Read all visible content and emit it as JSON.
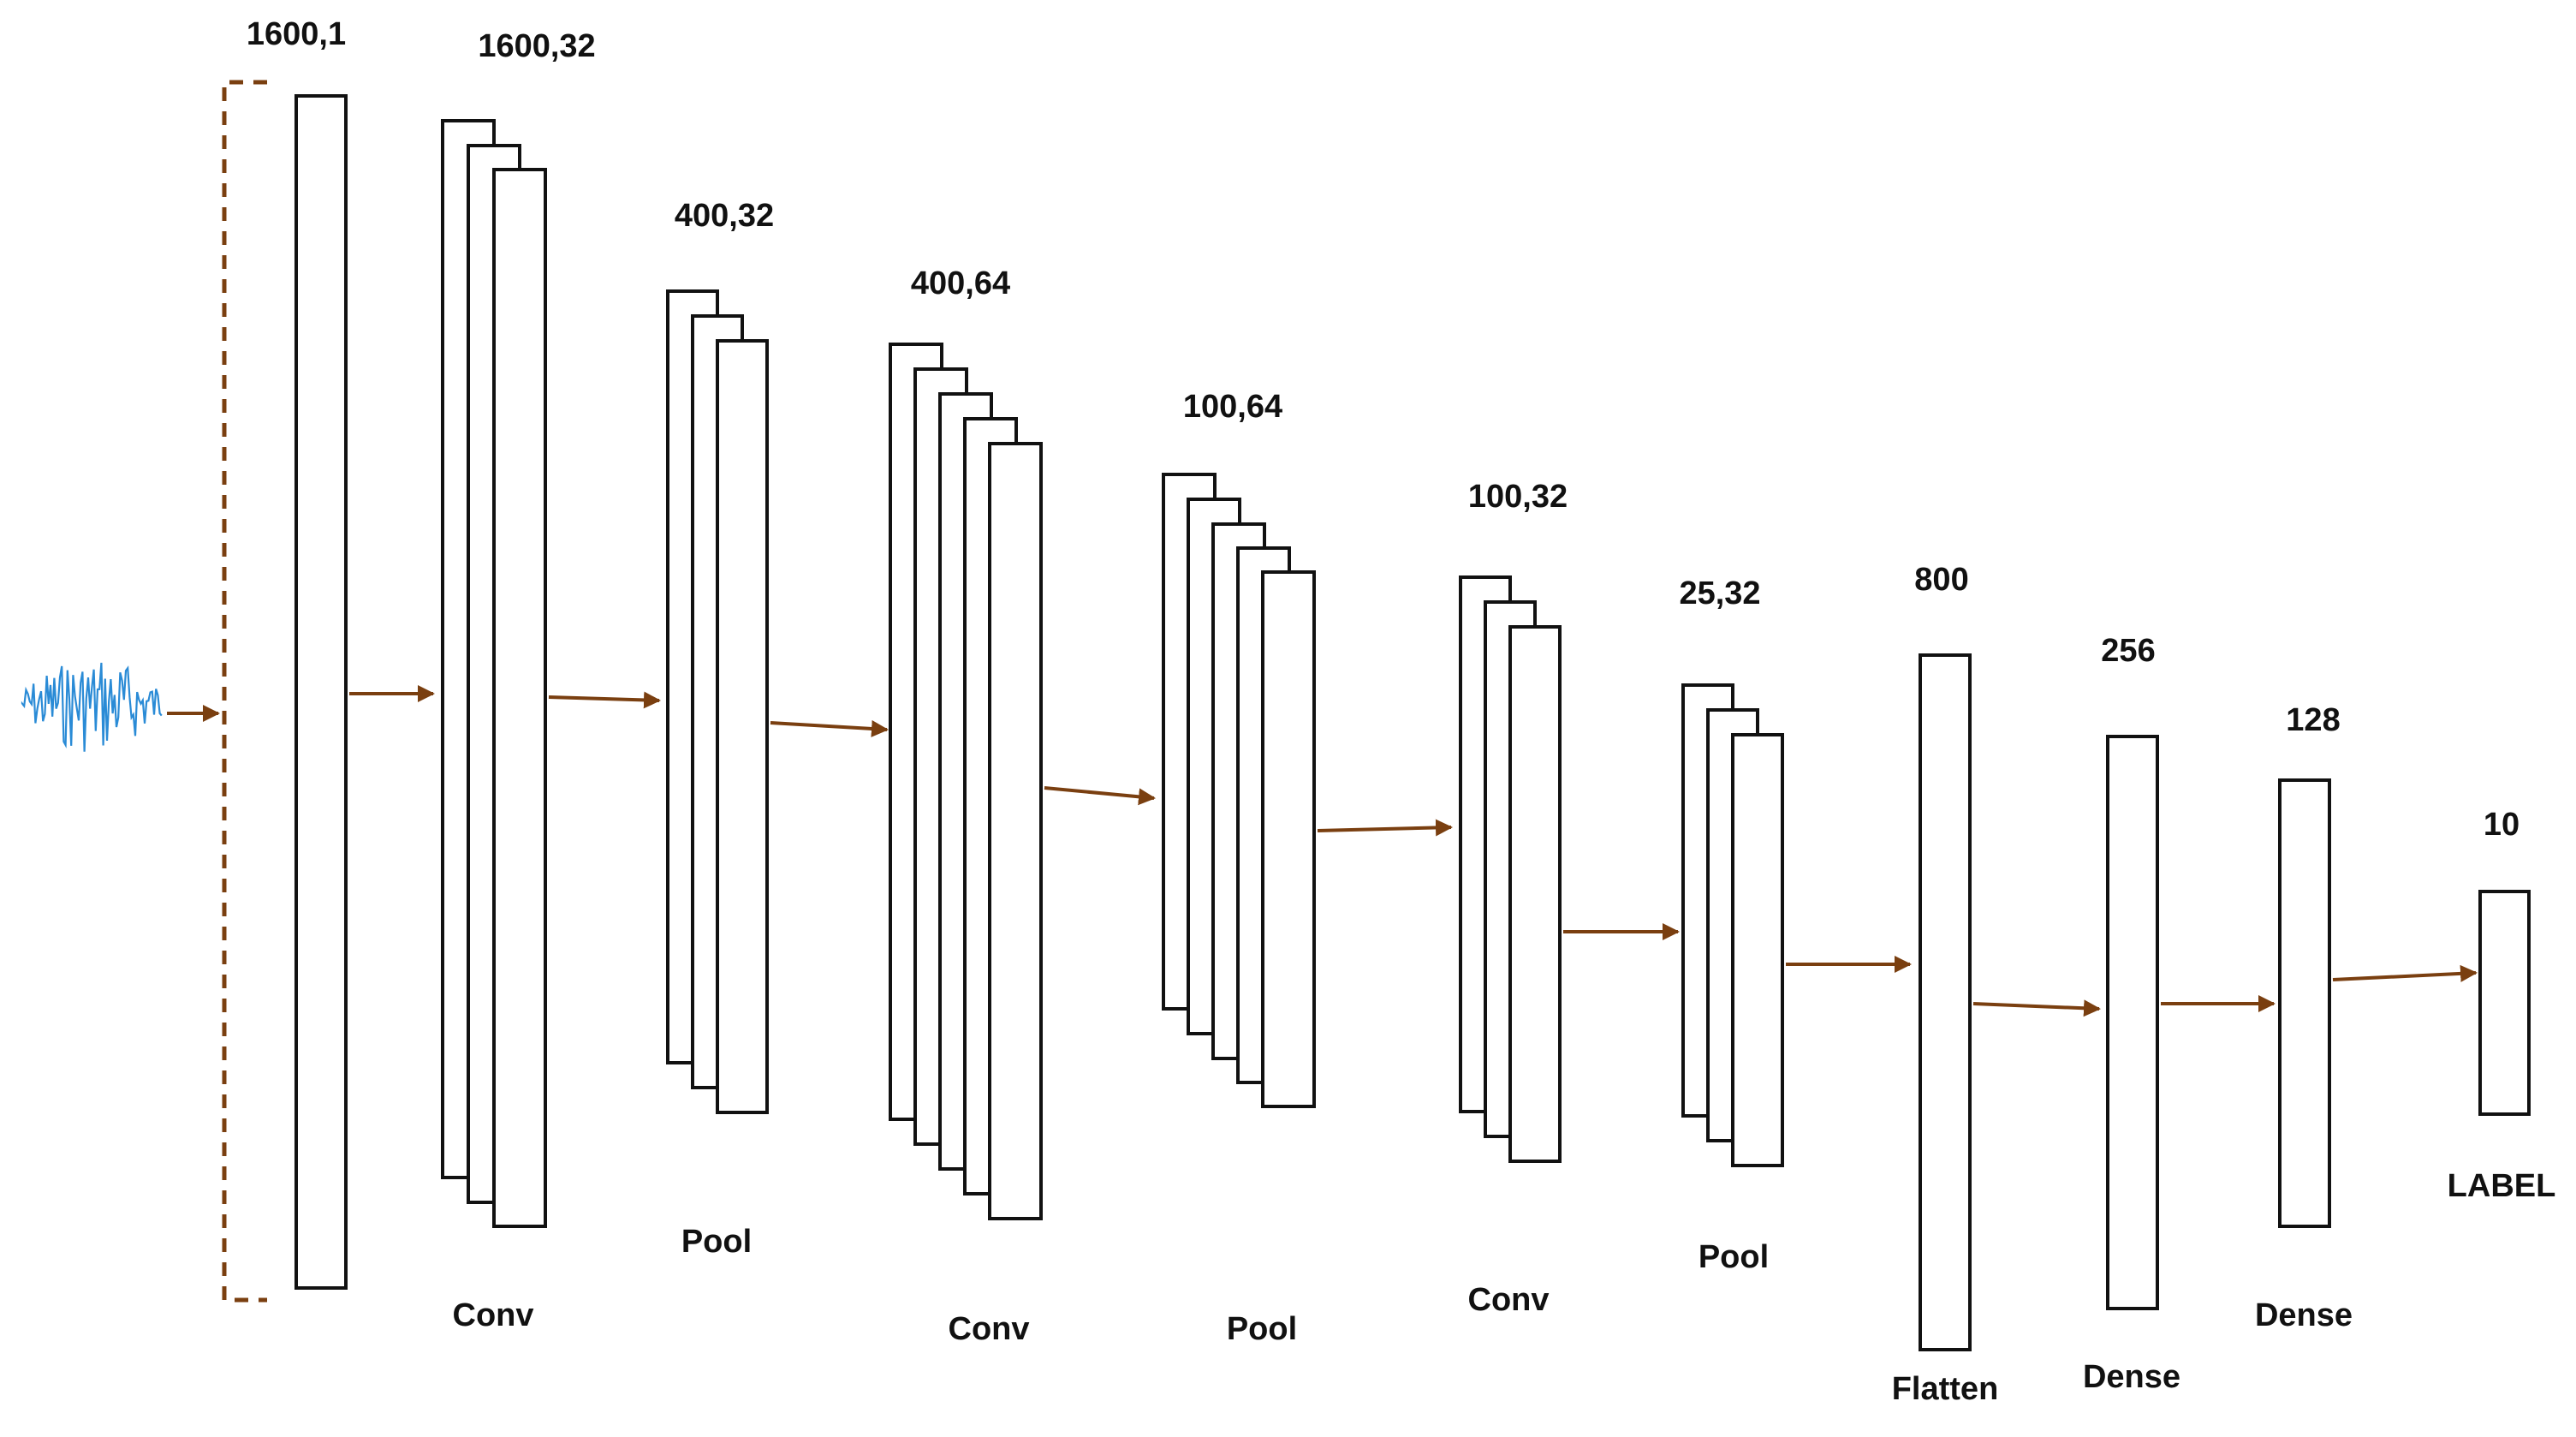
{
  "diagram": {
    "colors": {
      "arrow": "#7a3f10",
      "signal": "#2a8bd6",
      "box_stroke": "#111111"
    },
    "layers": [
      {
        "shape_label": "1600,1",
        "type_label": ""
      },
      {
        "shape_label": "1600,32",
        "type_label": "Conv"
      },
      {
        "shape_label": "400,32",
        "type_label": "Pool"
      },
      {
        "shape_label": "400,64",
        "type_label": "Conv"
      },
      {
        "shape_label": "100,64",
        "type_label": "Pool"
      },
      {
        "shape_label": "100,32",
        "type_label": "Conv"
      },
      {
        "shape_label": "25,32",
        "type_label": "Pool"
      },
      {
        "shape_label": "800",
        "type_label": "Flatten"
      },
      {
        "shape_label": "256",
        "type_label": "Dense"
      },
      {
        "shape_label": "128",
        "type_label": "Dense"
      },
      {
        "shape_label": "10",
        "type_label": "LABEL"
      }
    ]
  }
}
